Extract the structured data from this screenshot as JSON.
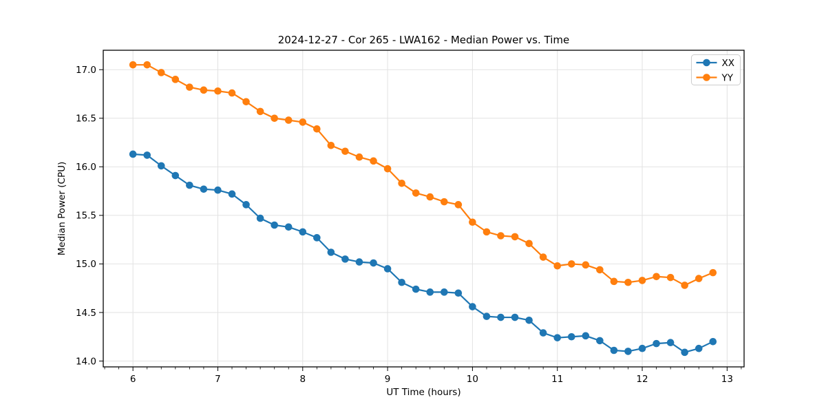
{
  "chart_data": {
    "type": "line",
    "title": "2024-12-27 - Cor 265 - LWA162 - Median Power vs. Time",
    "xlabel": "UT Time (hours)",
    "ylabel": "Median Power (CPU)",
    "xlim": [
      5.65,
      13.2
    ],
    "ylim": [
      13.94,
      17.2
    ],
    "xticks": [
      6,
      7,
      8,
      9,
      10,
      11,
      12,
      13
    ],
    "xtick_labels": [
      "6",
      "7",
      "8",
      "9",
      "10",
      "11",
      "12",
      "13"
    ],
    "minor_tick_interval_hours": 0.1667,
    "yticks": [
      14.0,
      14.5,
      15.0,
      15.5,
      16.0,
      16.5,
      17.0
    ],
    "ytick_labels": [
      "14.0",
      "14.5",
      "15.0",
      "15.5",
      "16.0",
      "16.5",
      "17.0"
    ],
    "grid": true,
    "grid_color": "#e2e2e2",
    "background": "#ffffff",
    "legend_position": "upper right",
    "x": [
      6.0,
      6.1667,
      6.3333,
      6.5,
      6.6667,
      6.8333,
      7.0,
      7.1667,
      7.3333,
      7.5,
      7.6667,
      7.8333,
      8.0,
      8.1667,
      8.3333,
      8.5,
      8.6667,
      8.8333,
      9.0,
      9.1667,
      9.3333,
      9.5,
      9.6667,
      9.8333,
      10.0,
      10.1667,
      10.3333,
      10.5,
      10.6667,
      10.8333,
      11.0,
      11.1667,
      11.3333,
      11.5,
      11.6667,
      11.8333,
      12.0,
      12.1667,
      12.3333,
      12.5,
      12.6667,
      12.8333
    ],
    "series": [
      {
        "name": "XX",
        "color": "#1f77b4",
        "values": [
          16.13,
          16.12,
          16.01,
          15.91,
          15.81,
          15.77,
          15.76,
          15.72,
          15.61,
          15.47,
          15.4,
          15.38,
          15.33,
          15.27,
          15.12,
          15.05,
          15.02,
          15.01,
          14.95,
          14.81,
          14.74,
          14.71,
          14.71,
          14.7,
          14.56,
          14.46,
          14.45,
          14.45,
          14.42,
          14.29,
          14.24,
          14.25,
          14.26,
          14.21,
          14.11,
          14.1,
          14.13,
          14.18,
          14.19,
          14.09,
          14.13,
          14.2
        ]
      },
      {
        "name": "YY",
        "color": "#ff7f0e",
        "values": [
          17.05,
          17.05,
          16.97,
          16.9,
          16.82,
          16.79,
          16.78,
          16.76,
          16.67,
          16.57,
          16.5,
          16.48,
          16.46,
          16.39,
          16.22,
          16.16,
          16.1,
          16.06,
          15.98,
          15.83,
          15.73,
          15.69,
          15.64,
          15.61,
          15.43,
          15.33,
          15.29,
          15.28,
          15.21,
          15.07,
          14.98,
          15.0,
          14.99,
          14.94,
          14.82,
          14.81,
          14.83,
          14.87,
          14.86,
          14.78,
          14.85,
          14.91
        ]
      }
    ],
    "legend": {
      "items": [
        {
          "label": "XX",
          "color": "#1f77b4"
        },
        {
          "label": "YY",
          "color": "#ff7f0e"
        }
      ]
    }
  }
}
